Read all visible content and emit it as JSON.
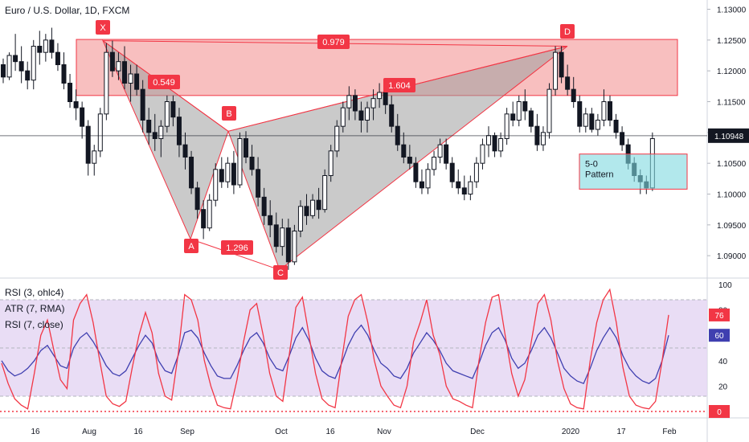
{
  "title": "Euro / U.S. Dollar, 1D, FXCM",
  "colors": {
    "up": "#26a69a",
    "down": "#ef5350",
    "candle": "#26a69a",
    "pattern_fill": "#9e9e9e",
    "zone_fill": "#f28b8b",
    "label_bg": "#f23645",
    "box_fill": "#7fd8e0",
    "rsi3": "#f23645",
    "rsi7": "#3f3fb0",
    "rsi_band": "#e3d4f3"
  },
  "chart_data": [
    {
      "type": "candlestick",
      "ylabels": [
        "1.13000",
        "1.12500",
        "1.12000",
        "1.11500",
        "1.11000",
        "1.10500",
        "1.10000",
        "1.09500",
        "1.09000"
      ],
      "yticks": [
        1.13,
        1.125,
        1.12,
        1.115,
        1.11,
        1.105,
        1.1,
        1.095,
        1.09
      ],
      "last_price": "1.10948",
      "x_labels": [
        "16",
        "Aug",
        "16",
        "Sep",
        "16",
        "Oct",
        "16",
        "Nov",
        "Dec",
        "2020",
        "17",
        "Feb"
      ],
      "pattern": {
        "points": [
          {
            "name": "X",
            "price": 1.1249
          },
          {
            "name": "A",
            "price": 1.0927
          },
          {
            "name": "B",
            "price": 1.1102
          },
          {
            "name": "C",
            "price": 1.0877
          },
          {
            "name": "D",
            "price": 1.124
          }
        ],
        "ratios": [
          {
            "label": "0.549",
            "type": "XB"
          },
          {
            "label": "1.296",
            "type": "AC"
          },
          {
            "label": "1.604",
            "type": "BD"
          },
          {
            "label": "0.979",
            "type": "XD"
          }
        ]
      },
      "zone": {
        "top": 1.1251,
        "bottom": 1.116
      },
      "box": {
        "label1": "5-0",
        "label2": "Pattern",
        "top": 1.1065,
        "bottom": 1.1008
      },
      "candles": [
        [
          1.121,
          1.122,
          1.118,
          1.119
        ],
        [
          1.119,
          1.123,
          1.1185,
          1.1225
        ],
        [
          1.1225,
          1.126,
          1.12,
          1.1215
        ],
        [
          1.1215,
          1.124,
          1.118,
          1.12
        ],
        [
          1.12,
          1.1215,
          1.117,
          1.1185
        ],
        [
          1.1185,
          1.125,
          1.117,
          1.124
        ],
        [
          1.124,
          1.1265,
          1.121,
          1.123
        ],
        [
          1.123,
          1.126,
          1.1215,
          1.125
        ],
        [
          1.125,
          1.127,
          1.122,
          1.123
        ],
        [
          1.123,
          1.1245,
          1.12,
          1.121
        ],
        [
          1.121,
          1.123,
          1.117,
          1.118
        ],
        [
          1.118,
          1.1195,
          1.114,
          1.115
        ],
        [
          1.115,
          1.117,
          1.112,
          1.114
        ],
        [
          1.114,
          1.115,
          1.109,
          1.111
        ],
        [
          1.111,
          1.112,
          1.103,
          1.105
        ],
        [
          1.105,
          1.108,
          1.103,
          1.107
        ],
        [
          1.107,
          1.114,
          1.106,
          1.113
        ],
        [
          1.113,
          1.1245,
          1.112,
          1.123
        ],
        [
          1.123,
          1.1249,
          1.119,
          1.12
        ],
        [
          1.12,
          1.123,
          1.1185,
          1.1215
        ],
        [
          1.1215,
          1.124,
          1.117,
          1.118
        ],
        [
          1.118,
          1.121,
          1.115,
          1.1195
        ],
        [
          1.1195,
          1.121,
          1.116,
          1.117
        ],
        [
          1.117,
          1.1185,
          1.11,
          1.112
        ],
        [
          1.112,
          1.114,
          1.108,
          1.11
        ],
        [
          1.11,
          1.113,
          1.107,
          1.109
        ],
        [
          1.109,
          1.112,
          1.106,
          1.111
        ],
        [
          1.111,
          1.116,
          1.11,
          1.115
        ],
        [
          1.115,
          1.116,
          1.111,
          1.1125
        ],
        [
          1.1125,
          1.114,
          1.106,
          1.108
        ],
        [
          1.108,
          1.11,
          1.104,
          1.106
        ],
        [
          1.106,
          1.107,
          1.1,
          1.101
        ],
        [
          1.101,
          1.102,
          1.096,
          1.0975
        ],
        [
          1.0975,
          1.099,
          1.0927,
          1.0945
        ],
        [
          1.0945,
          1.1,
          1.094,
          1.099
        ],
        [
          1.099,
          1.105,
          1.098,
          1.104
        ],
        [
          1.104,
          1.106,
          1.101,
          1.102
        ],
        [
          1.102,
          1.106,
          1.101,
          1.105
        ],
        [
          1.105,
          1.107,
          1.1,
          1.1015
        ],
        [
          1.1015,
          1.11,
          1.101,
          1.109
        ],
        [
          1.109,
          1.1102,
          1.105,
          1.106
        ],
        [
          1.106,
          1.108,
          1.103,
          1.104
        ],
        [
          1.104,
          1.106,
          1.098,
          1.0995
        ],
        [
          1.0995,
          1.101,
          1.095,
          1.0965
        ],
        [
          1.0965,
          1.099,
          1.093,
          1.095
        ],
        [
          1.095,
          1.097,
          1.0905,
          1.0915
        ],
        [
          1.0915,
          1.096,
          1.09,
          1.0945
        ],
        [
          1.0945,
          1.096,
          1.0877,
          1.089
        ],
        [
          1.089,
          1.095,
          1.0885,
          1.094
        ],
        [
          1.094,
          1.099,
          1.093,
          1.098
        ],
        [
          1.098,
          1.1,
          1.095,
          1.0965
        ],
        [
          1.0965,
          1.1,
          1.096,
          1.099
        ],
        [
          1.099,
          1.101,
          1.096,
          1.0975
        ],
        [
          1.0975,
          1.104,
          1.097,
          1.103
        ],
        [
          1.103,
          1.108,
          1.102,
          1.107
        ],
        [
          1.107,
          1.112,
          1.106,
          1.111
        ],
        [
          1.111,
          1.115,
          1.11,
          1.114
        ],
        [
          1.114,
          1.1175,
          1.112,
          1.116
        ],
        [
          1.116,
          1.117,
          1.112,
          1.1135
        ],
        [
          1.1135,
          1.115,
          1.11,
          1.112
        ],
        [
          1.112,
          1.115,
          1.11,
          1.114
        ],
        [
          1.114,
          1.117,
          1.112,
          1.1155
        ],
        [
          1.1155,
          1.118,
          1.114,
          1.1165
        ],
        [
          1.1165,
          1.1175,
          1.113,
          1.1145
        ],
        [
          1.1145,
          1.116,
          1.11,
          1.111
        ],
        [
          1.111,
          1.113,
          1.107,
          1.108
        ],
        [
          1.108,
          1.11,
          1.105,
          1.106
        ],
        [
          1.106,
          1.108,
          1.104,
          1.105
        ],
        [
          1.105,
          1.106,
          1.101,
          1.102
        ],
        [
          1.102,
          1.104,
          1.1,
          1.101
        ],
        [
          1.101,
          1.105,
          1.1,
          1.104
        ],
        [
          1.104,
          1.107,
          1.103,
          1.106
        ],
        [
          1.106,
          1.109,
          1.105,
          1.108
        ],
        [
          1.108,
          1.109,
          1.104,
          1.105
        ],
        [
          1.105,
          1.106,
          1.101,
          1.102
        ],
        [
          1.102,
          1.104,
          1.1,
          1.101
        ],
        [
          1.101,
          1.103,
          1.099,
          1.1
        ],
        [
          1.1,
          1.103,
          1.099,
          1.102
        ],
        [
          1.102,
          1.106,
          1.101,
          1.105
        ],
        [
          1.105,
          1.109,
          1.104,
          1.108
        ],
        [
          1.108,
          1.111,
          1.106,
          1.1095
        ],
        [
          1.1095,
          1.11,
          1.106,
          1.107
        ],
        [
          1.107,
          1.11,
          1.106,
          1.109
        ],
        [
          1.109,
          1.114,
          1.108,
          1.113
        ],
        [
          1.113,
          1.115,
          1.111,
          1.112
        ],
        [
          1.112,
          1.116,
          1.111,
          1.115
        ],
        [
          1.115,
          1.117,
          1.112,
          1.1135
        ],
        [
          1.1135,
          1.114,
          1.11,
          1.111
        ],
        [
          1.111,
          1.113,
          1.107,
          1.108
        ],
        [
          1.108,
          1.111,
          1.107,
          1.11
        ],
        [
          1.11,
          1.118,
          1.109,
          1.117
        ],
        [
          1.117,
          1.124,
          1.116,
          1.123
        ],
        [
          1.123,
          1.124,
          1.118,
          1.119
        ],
        [
          1.119,
          1.121,
          1.116,
          1.117
        ],
        [
          1.117,
          1.119,
          1.114,
          1.115
        ],
        [
          1.115,
          1.116,
          1.11,
          1.111
        ],
        [
          1.111,
          1.114,
          1.11,
          1.113
        ],
        [
          1.113,
          1.114,
          1.11,
          1.1105
        ],
        [
          1.1105,
          1.113,
          1.1095,
          1.112
        ],
        [
          1.112,
          1.117,
          1.111,
          1.115
        ],
        [
          1.115,
          1.116,
          1.111,
          1.112
        ],
        [
          1.112,
          1.113,
          1.109,
          1.11
        ],
        [
          1.11,
          1.111,
          1.107,
          1.108
        ],
        [
          1.108,
          1.109,
          1.104,
          1.105
        ],
        [
          1.105,
          1.106,
          1.102,
          1.103
        ],
        [
          1.103,
          1.104,
          1.1,
          1.102
        ],
        [
          1.102,
          1.103,
          1.1,
          1.101
        ],
        [
          1.101,
          1.11,
          1.1005,
          1.109
        ]
      ]
    },
    {
      "type": "line",
      "indicators": [
        "RSI (3, ohlc4)",
        "ATR (7, RMA)",
        "RSI (7, close)"
      ],
      "ylabels": [
        "100",
        "80",
        "60",
        "40",
        "20",
        "0"
      ],
      "yticks": [
        100,
        80,
        60,
        40,
        20,
        0
      ],
      "badges": [
        {
          "value": "76",
          "color": "#f23645"
        },
        {
          "value": "60",
          "color": "#3f3fb0"
        },
        {
          "value": "0",
          "color": "#f23645"
        }
      ],
      "band": [
        12,
        88
      ],
      "rsi3": [
        38,
        22,
        10,
        5,
        2,
        30,
        60,
        72,
        48,
        25,
        18,
        72,
        85,
        92,
        70,
        40,
        12,
        6,
        4,
        8,
        35,
        60,
        78,
        62,
        30,
        12,
        9,
        45,
        92,
        88,
        72,
        40,
        20,
        5,
        3,
        2,
        25,
        55,
        80,
        85,
        60,
        30,
        12,
        8,
        45,
        82,
        90,
        60,
        30,
        10,
        5,
        3,
        40,
        75,
        88,
        92,
        70,
        40,
        20,
        12,
        5,
        3,
        20,
        55,
        70,
        88,
        60,
        45,
        20,
        10,
        8,
        5,
        3,
        40,
        70,
        90,
        92,
        60,
        30,
        12,
        25,
        55,
        85,
        92,
        72,
        40,
        18,
        6,
        3,
        2,
        40,
        70,
        88,
        96,
        70,
        35,
        12,
        5,
        3,
        2,
        8,
        40,
        76
      ],
      "rsi7": [
        40,
        32,
        28,
        30,
        34,
        40,
        48,
        52,
        44,
        36,
        34,
        50,
        58,
        62,
        55,
        46,
        36,
        30,
        28,
        32,
        42,
        52,
        60,
        54,
        40,
        32,
        30,
        44,
        62,
        64,
        58,
        46,
        36,
        28,
        26,
        26,
        36,
        48,
        58,
        62,
        54,
        42,
        34,
        32,
        44,
        58,
        66,
        56,
        42,
        32,
        28,
        26,
        38,
        52,
        62,
        68,
        60,
        48,
        38,
        34,
        28,
        26,
        34,
        46,
        54,
        62,
        56,
        48,
        38,
        32,
        30,
        28,
        26,
        38,
        52,
        62,
        66,
        56,
        42,
        34,
        38,
        48,
        60,
        66,
        58,
        46,
        34,
        28,
        24,
        22,
        34,
        48,
        58,
        66,
        58,
        44,
        34,
        28,
        24,
        22,
        26,
        40,
        60
      ]
    }
  ]
}
